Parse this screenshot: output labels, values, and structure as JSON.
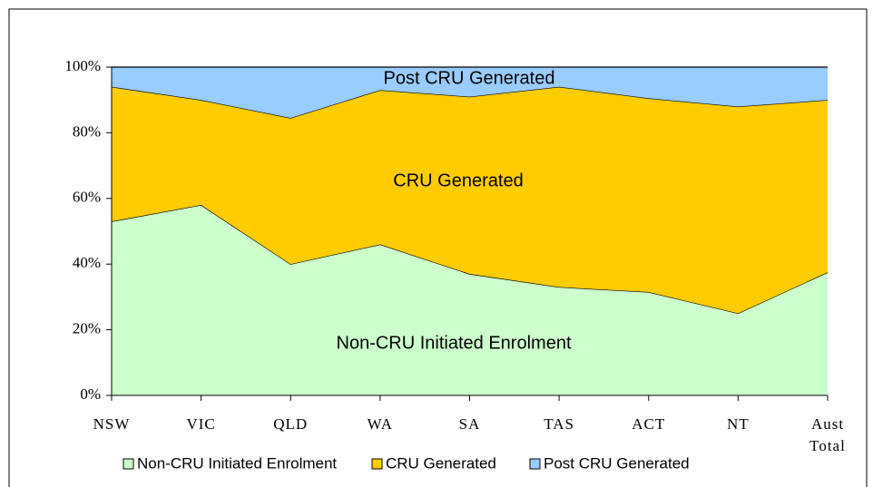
{
  "chart_data": {
    "type": "stacked_area",
    "categories": [
      "NSW",
      "VIC",
      "QLD",
      "WA",
      "SA",
      "TAS",
      "ACT",
      "NT",
      "Aust Total"
    ],
    "series": [
      {
        "name": "Non-CRU Initiated Enrolment",
        "color": "#ccffcc",
        "values": [
          53,
          58,
          40,
          46,
          37,
          33,
          31.5,
          25,
          37.5
        ]
      },
      {
        "name": "CRU Generated",
        "color": "#ffcc00",
        "values": [
          41,
          32,
          44.5,
          47,
          54,
          61,
          59,
          63,
          52.5
        ]
      },
      {
        "name": "Post CRU Generated",
        "color": "#99ccff",
        "values": [
          6,
          10,
          15.5,
          7,
          9,
          6,
          9.5,
          12,
          10
        ]
      }
    ],
    "annotations": [
      "Post CRU Generated",
      "CRU Generated",
      "Non-CRU Initiated Enrolment"
    ],
    "ylim": [
      0,
      100
    ],
    "yticks": [
      {
        "value": 0,
        "label": "0%"
      },
      {
        "value": 20,
        "label": "20%"
      },
      {
        "value": 40,
        "label": "40%"
      },
      {
        "value": 60,
        "label": "60%"
      },
      {
        "value": 80,
        "label": "80%"
      },
      {
        "value": 100,
        "label": "100%"
      }
    ],
    "grid": false,
    "legend": "bottom"
  }
}
